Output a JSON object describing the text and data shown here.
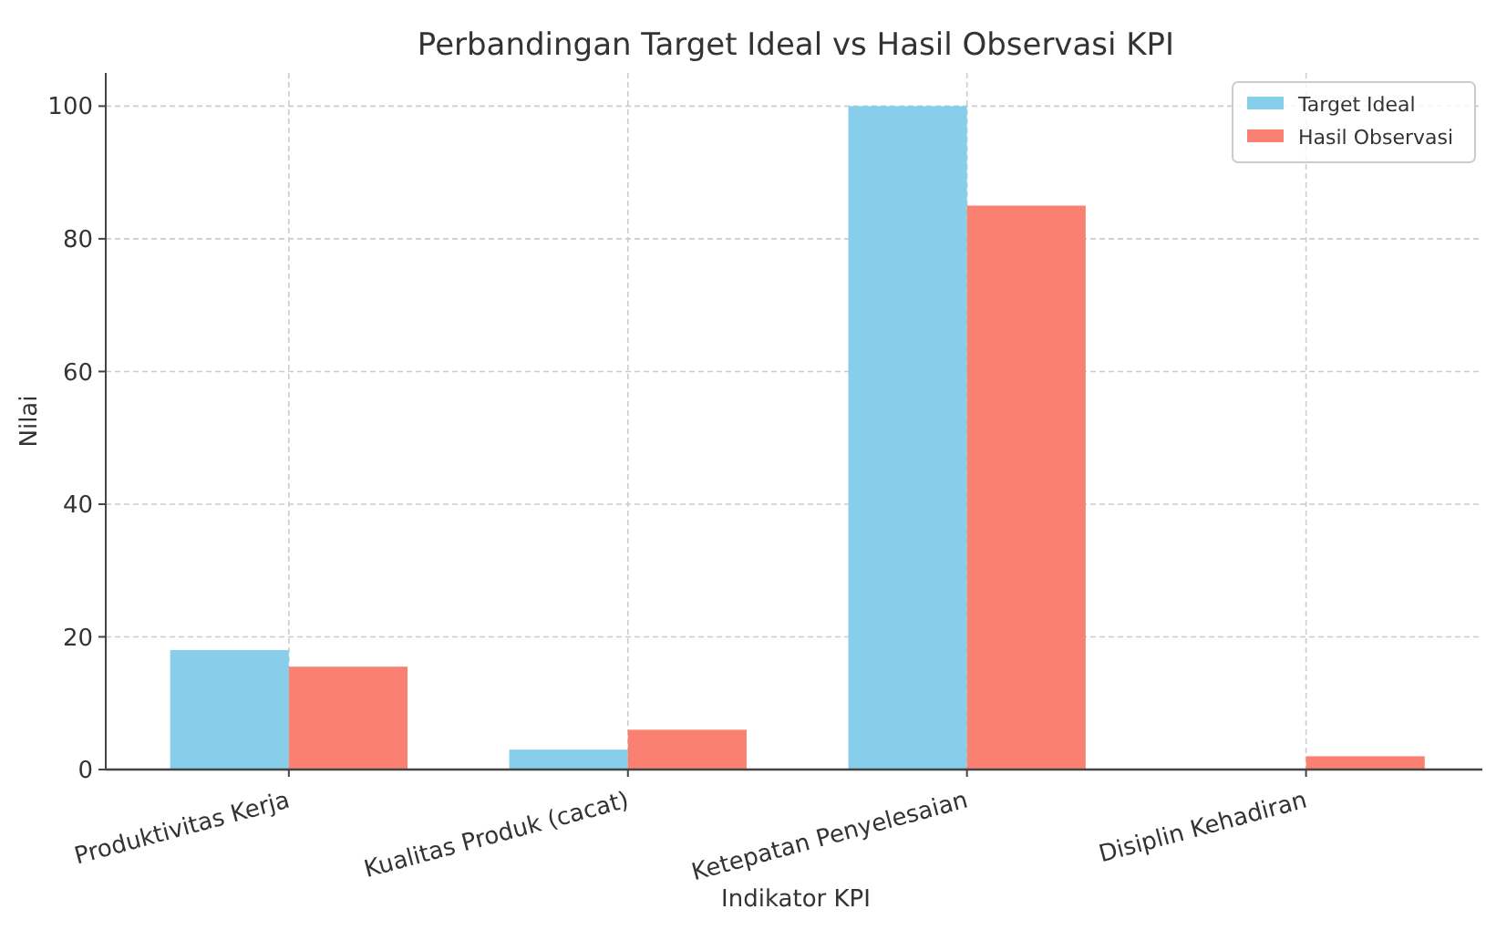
{
  "chart_data": {
    "type": "bar",
    "title": "Perbandingan Target Ideal vs Hasil Observasi KPI",
    "xlabel": "Indikator KPI",
    "ylabel": "Nilai",
    "categories": [
      "Produktivitas Kerja",
      "Kualitas Produk (cacat)",
      "Ketepatan Penyelesaian",
      "Disiplin Kehadiran"
    ],
    "series": [
      {
        "name": "Target Ideal",
        "color": "#87ceeb",
        "values": [
          18,
          3,
          100,
          0
        ]
      },
      {
        "name": "Hasil Observasi",
        "color": "#fa8072",
        "values": [
          15.5,
          6,
          85,
          2
        ]
      }
    ],
    "ylim": [
      0,
      105
    ],
    "yticks": [
      0,
      20,
      40,
      60,
      80,
      100
    ],
    "grid": true,
    "legend": "top right"
  }
}
